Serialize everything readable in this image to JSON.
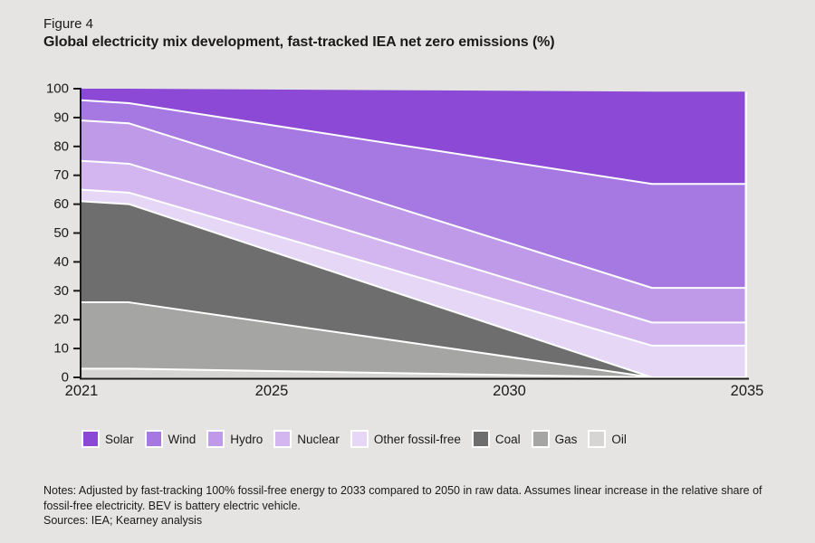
{
  "page": {
    "background": "#e5e4e2",
    "text_color": "#1a1a1a"
  },
  "header": {
    "figure_label": "Figure 4",
    "title": "Global electricity mix development, fast-tracked IEA net zero emissions (%)"
  },
  "chart_data": {
    "type": "area",
    "stacked": true,
    "title": "Global electricity mix development, fast-tracked IEA net zero emissions (%)",
    "xlabel": "",
    "ylabel": "",
    "x": [
      2021,
      2022,
      2033,
      2035
    ],
    "series": [
      {
        "name": "Oil",
        "color": "#d6d5d4",
        "values": [
          3,
          3,
          0,
          0
        ]
      },
      {
        "name": "Gas",
        "color": "#a5a5a4",
        "values": [
          23,
          23,
          0,
          0
        ]
      },
      {
        "name": "Coal",
        "color": "#6e6e6e",
        "values": [
          35,
          34,
          0,
          0
        ]
      },
      {
        "name": "Other fossil-free",
        "color": "#e6d7f7",
        "values": [
          4,
          4,
          11,
          11
        ]
      },
      {
        "name": "Nuclear",
        "color": "#d3b6f0",
        "values": [
          10,
          10,
          8,
          8
        ]
      },
      {
        "name": "Hydro",
        "color": "#bf9ae9",
        "values": [
          14,
          14,
          12,
          12
        ]
      },
      {
        "name": "Wind",
        "color": "#a678e2",
        "values": [
          7,
          7,
          36,
          36
        ]
      },
      {
        "name": "Solar",
        "color": "#8b49d5",
        "values": [
          4,
          5,
          32,
          32
        ]
      }
    ],
    "legend_order": [
      "Solar",
      "Wind",
      "Hydro",
      "Nuclear",
      "Other fossil-free",
      "Coal",
      "Gas",
      "Oil"
    ],
    "legend_position": "bottom",
    "xticks": [
      2021,
      2025,
      2030,
      2035
    ],
    "yticks": [
      0,
      10,
      20,
      30,
      40,
      50,
      60,
      70,
      80,
      90,
      100
    ],
    "xlim": [
      2021,
      2035
    ],
    "ylim": [
      0,
      100
    ],
    "grid": false,
    "axis_color": "#1a1a1a",
    "boundary_stroke": "#ffffff"
  },
  "footer": {
    "notes": "Notes: Adjusted by fast-tracking 100% fossil-free energy to 2033 compared to 2050 in raw data. Assumes linear increase in the relative share of fossil-free electricity. BEV is battery electric vehicle.",
    "sources": "Sources: IEA; Kearney analysis"
  }
}
